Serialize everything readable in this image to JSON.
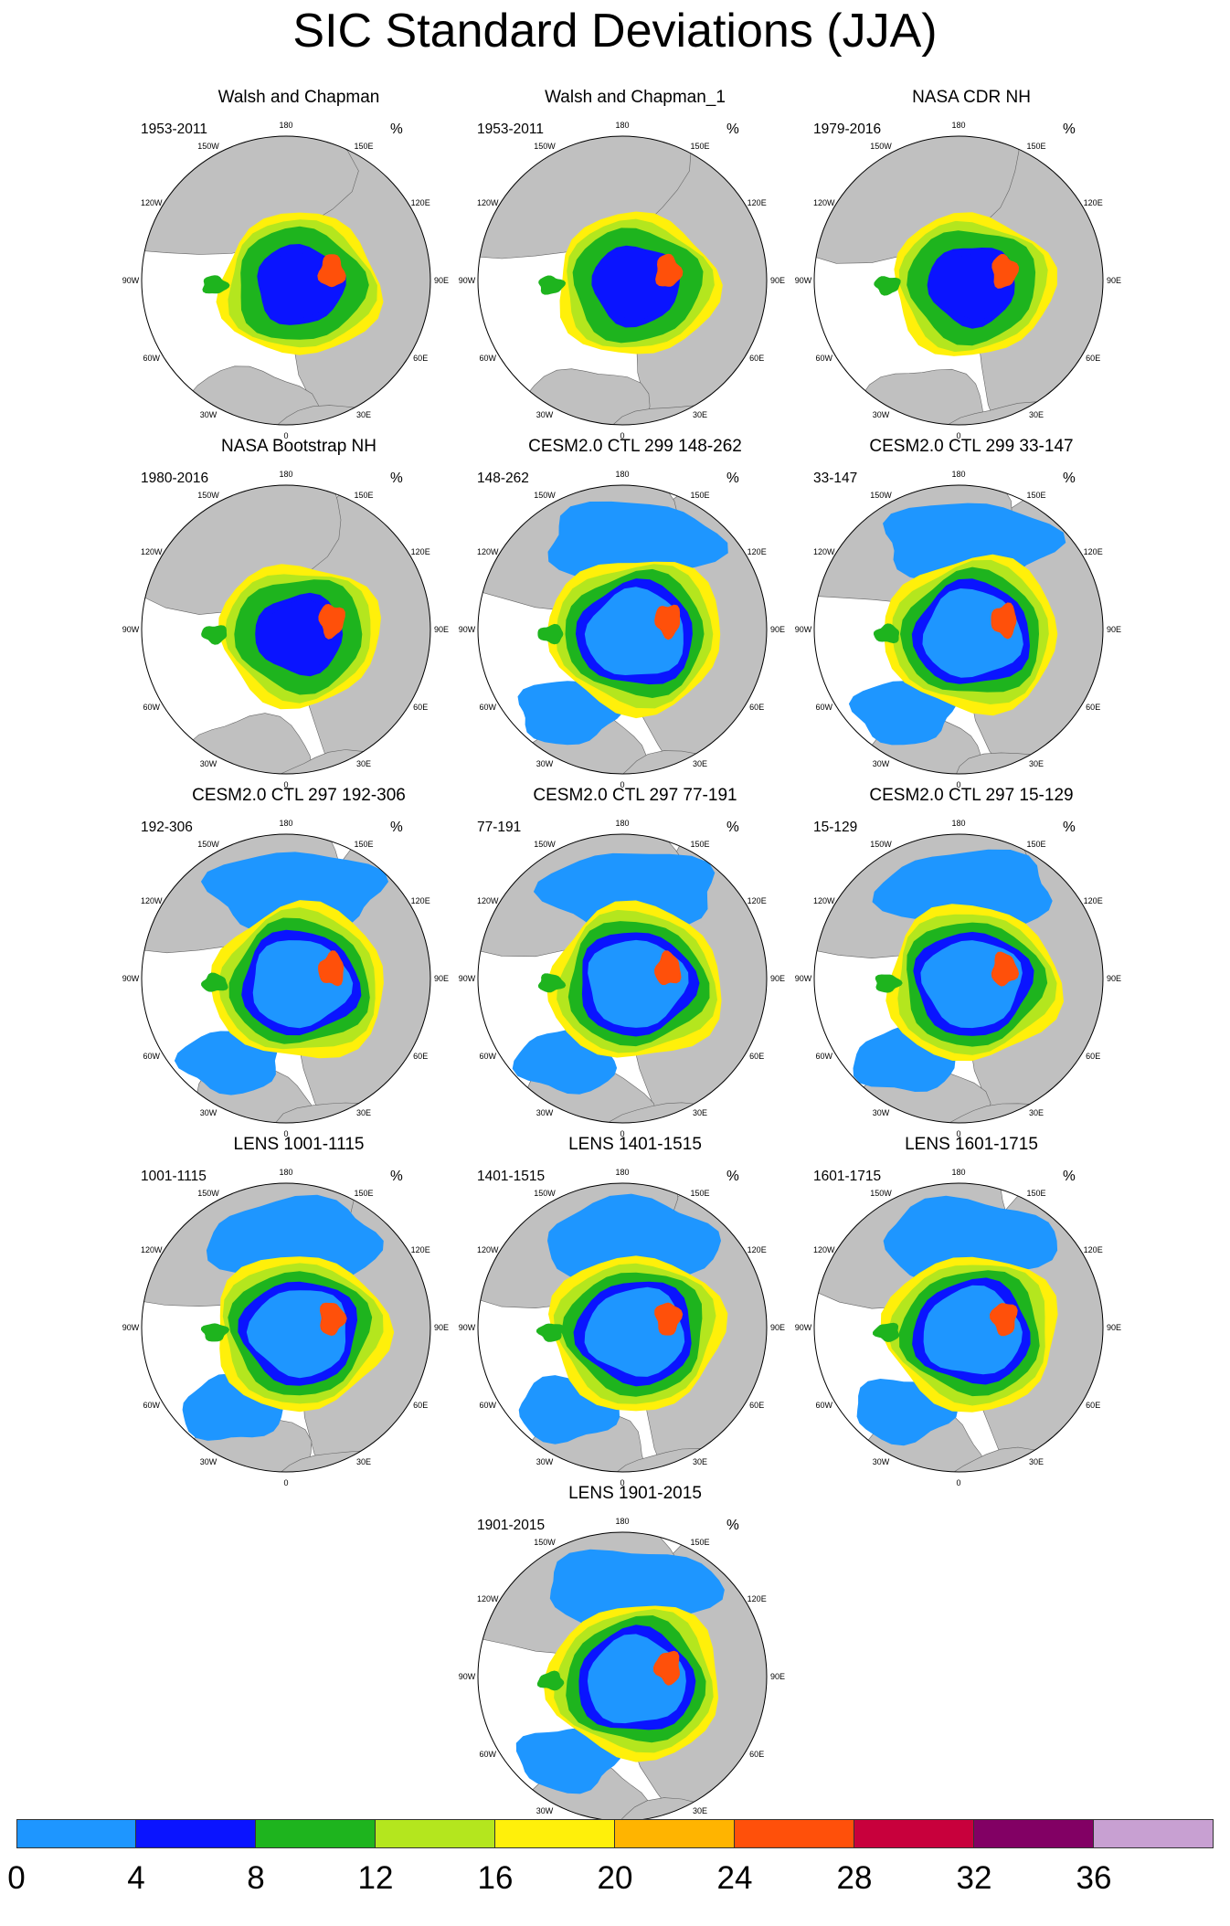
{
  "chart_data": {
    "type": "heatmap",
    "title": "SIC Standard Deviations (JJA)",
    "projection": "north-polar-stereographic",
    "unit_label": "%",
    "longitude_labels": [
      "180",
      "150E",
      "120E",
      "90E",
      "60E",
      "30E",
      "0",
      "30W",
      "60W",
      "90W",
      "120W",
      "150W"
    ],
    "colorbar": {
      "levels": [
        0,
        4,
        8,
        12,
        16,
        20,
        24,
        28,
        32,
        36
      ],
      "tick_labels": [
        "0",
        "4",
        "8",
        "12",
        "16",
        "20",
        "24",
        "28",
        "32",
        "36"
      ],
      "colors": [
        "#1e96ff",
        "#0a14ff",
        "#1eb41e",
        "#b4e61e",
        "#fff00a",
        "#ffb400",
        "#ff500a",
        "#c8003c",
        "#820064",
        "#c8a0d2"
      ]
    },
    "panels": [
      {
        "title": "Walsh and Chapman",
        "period": "1953-2011"
      },
      {
        "title": "Walsh and Chapman_1",
        "period": "1953-2011"
      },
      {
        "title": "NASA CDR NH",
        "period": "1979-2016"
      },
      {
        "title": "NASA Bootstrap NH",
        "period": "1980-2016"
      },
      {
        "title": "CESM2.0 CTL 299 148-262",
        "period": "148-262"
      },
      {
        "title": "CESM2.0 CTL 299 33-147",
        "period": "33-147"
      },
      {
        "title": "CESM2.0 CTL 297 192-306",
        "period": "192-306"
      },
      {
        "title": "CESM2.0 CTL 297 77-191",
        "period": "77-191"
      },
      {
        "title": "CESM2.0 CTL 297 15-129",
        "period": "15-129"
      },
      {
        "title": "LENS 1001-1115",
        "period": "1001-1115"
      },
      {
        "title": "LENS 1401-1515",
        "period": "1401-1515"
      },
      {
        "title": "LENS 1601-1715",
        "period": "1601-1715"
      },
      {
        "title": "LENS 1901-2015",
        "period": "1901-2015"
      }
    ]
  }
}
